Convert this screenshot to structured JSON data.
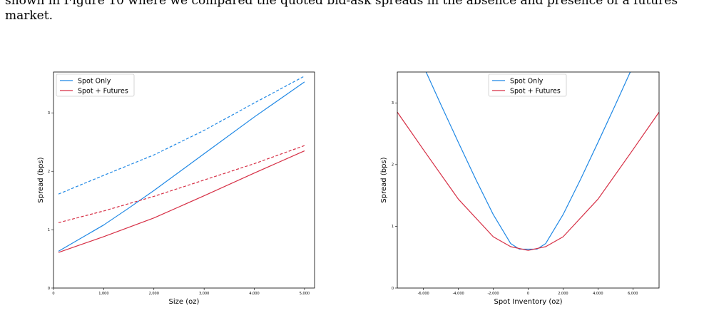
{
  "text": {
    "line1": "shown in Figure 10 where we compared the quoted bid-ask spreads in the absence and presence of a futures",
    "line2": "market."
  },
  "chart_data": [
    {
      "type": "line",
      "xlabel": "Size (oz)",
      "ylabel": "Spread (bps)",
      "xlim": [
        0,
        5200
      ],
      "ylim": [
        0,
        3.7
      ],
      "xticks": [
        0,
        1000,
        2000,
        3000,
        4000,
        5000
      ],
      "xtick_labels": [
        "0",
        "1,000",
        "2,000",
        "3,000",
        "4,000",
        "5,000"
      ],
      "yticks": [
        0,
        1,
        2,
        3
      ],
      "ytick_labels": [
        "0",
        "1",
        "2",
        "3"
      ],
      "legend": {
        "placement": "upper-left",
        "entries": [
          "Spot Only",
          "Spot + Futures"
        ]
      },
      "colors": {
        "spot_only": "#1f88e5",
        "spot_futures": "#d62f45"
      },
      "series": [
        {
          "name": "Spot Only",
          "style": "solid",
          "color": "#1f88e5",
          "x": [
            100,
            500,
            1000,
            1500,
            2000,
            3000,
            4000,
            5000
          ],
          "y": [
            0.63,
            0.83,
            1.08,
            1.37,
            1.67,
            2.3,
            2.93,
            3.53
          ]
        },
        {
          "name": "Spot Only",
          "style": "dashed",
          "color": "#1f88e5",
          "x": [
            100,
            1000,
            2000,
            3000,
            4000,
            5000
          ],
          "y": [
            1.61,
            1.93,
            2.28,
            2.7,
            3.17,
            3.63
          ]
        },
        {
          "name": "Spot + Futures",
          "style": "solid",
          "color": "#d62f45",
          "x": [
            100,
            500,
            1000,
            2000,
            3000,
            4000,
            5000
          ],
          "y": [
            0.61,
            0.73,
            0.88,
            1.2,
            1.58,
            1.97,
            2.35
          ]
        },
        {
          "name": "Spot + Futures",
          "style": "dashed",
          "color": "#d62f45",
          "x": [
            100,
            1000,
            2000,
            3000,
            4000,
            5000
          ],
          "y": [
            1.12,
            1.32,
            1.57,
            1.85,
            2.13,
            2.44
          ]
        }
      ]
    },
    {
      "type": "line",
      "xlabel": "Spot Inventory (oz)",
      "ylabel": "Spread (bps)",
      "xlim": [
        -7500,
        7500
      ],
      "ylim": [
        0,
        3.5
      ],
      "xticks": [
        -6000,
        -4000,
        -2000,
        0,
        2000,
        4000,
        6000
      ],
      "xtick_labels": [
        "-6,000",
        "-4,000",
        "-2,000",
        "0",
        "2,000",
        "4,000",
        "6,000"
      ],
      "yticks": [
        0,
        1,
        2,
        3
      ],
      "ytick_labels": [
        "0",
        "1",
        "2",
        "3"
      ],
      "legend": {
        "placement": "upper-center",
        "entries": [
          "Spot Only",
          "Spot + Futures"
        ]
      },
      "colors": {
        "spot_only": "#1f88e5",
        "spot_futures": "#d62f45"
      },
      "series": [
        {
          "name": "Spot Only",
          "style": "solid",
          "color": "#1f88e5",
          "x": [
            -5850,
            -5000,
            -4000,
            -3000,
            -2000,
            -1000,
            -500,
            0,
            500,
            1000,
            2000,
            3000,
            4000,
            5000,
            5850
          ],
          "y": [
            3.5,
            2.97,
            2.36,
            1.76,
            1.19,
            0.72,
            0.63,
            0.63,
            0.63,
            0.72,
            1.19,
            1.76,
            2.36,
            2.97,
            3.5
          ]
        },
        {
          "name": "Spot + Futures",
          "style": "solid",
          "color": "#d62f45",
          "x": [
            -7500,
            -6000,
            -4000,
            -2000,
            -1000,
            0,
            1000,
            2000,
            4000,
            6000,
            7500
          ],
          "y": [
            2.85,
            2.24,
            1.44,
            0.83,
            0.67,
            0.61,
            0.67,
            0.83,
            1.44,
            2.24,
            2.85
          ]
        }
      ]
    }
  ]
}
